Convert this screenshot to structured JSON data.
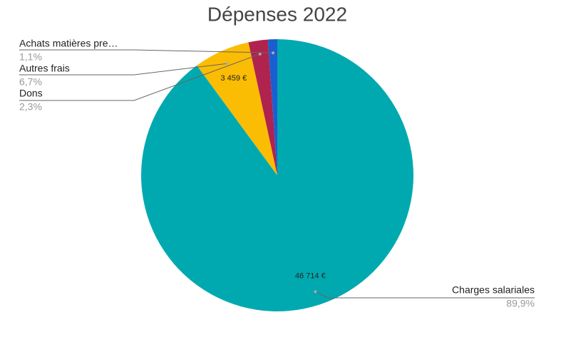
{
  "chart_data": {
    "type": "pie",
    "title": "Dépenses 2022",
    "categories": [
      "Charges salariales",
      "Autres frais",
      "Dons",
      "Achats matières pre…"
    ],
    "values": [
      46714,
      3459,
      1195,
      572
    ],
    "value_labels": [
      "46 714 €",
      "3 459 €",
      null,
      null
    ],
    "percent_labels": [
      "89,9%",
      "6,7%",
      "2,3%",
      "1,1%"
    ],
    "colors": [
      "#00a9b0",
      "#fbbc04",
      "#b0234e",
      "#1a5fd1"
    ]
  }
}
